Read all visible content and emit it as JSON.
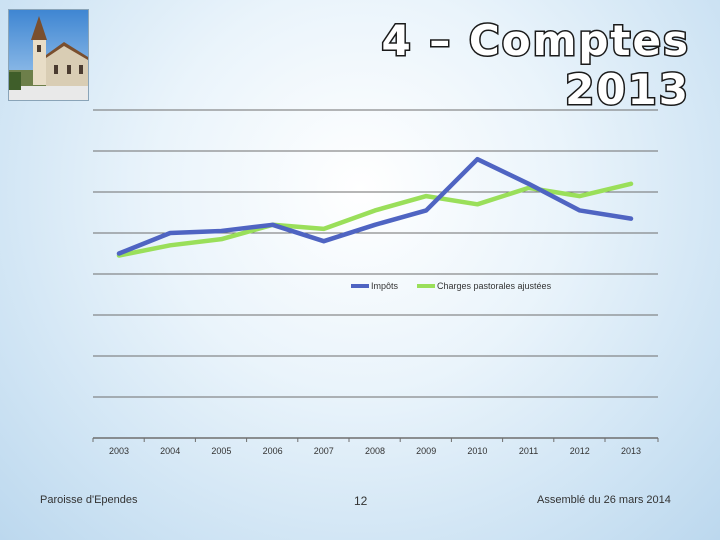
{
  "slide": {
    "title": "4 – Comptes 2013",
    "footer_left": "Paroisse d'Ependes",
    "page_number": "12",
    "footer_right": "Assemblé du 26 mars 2014"
  },
  "colors": {
    "impots": "#4f64c2",
    "charges": "#9adf5a",
    "grid": "#6e6e6e"
  },
  "chart_data": {
    "type": "line",
    "title": "",
    "xlabel": "",
    "ylabel": "",
    "categories": [
      "2003",
      "2004",
      "2005",
      "2006",
      "2007",
      "2008",
      "2009",
      "2010",
      "2011",
      "2012",
      "2013"
    ],
    "series": [
      {
        "name": "Impôts",
        "values": [
          4.5,
          5.0,
          5.05,
          5.2,
          4.8,
          5.2,
          5.55,
          6.8,
          6.2,
          5.55,
          5.35
        ]
      },
      {
        "name": "Charges pastorales ajustées",
        "values": [
          4.45,
          4.7,
          4.85,
          5.2,
          5.1,
          5.55,
          5.9,
          5.7,
          6.1,
          5.9,
          6.2
        ]
      }
    ],
    "ylim": [
      0,
      8
    ],
    "grid": true,
    "legend_position": "center-right"
  }
}
